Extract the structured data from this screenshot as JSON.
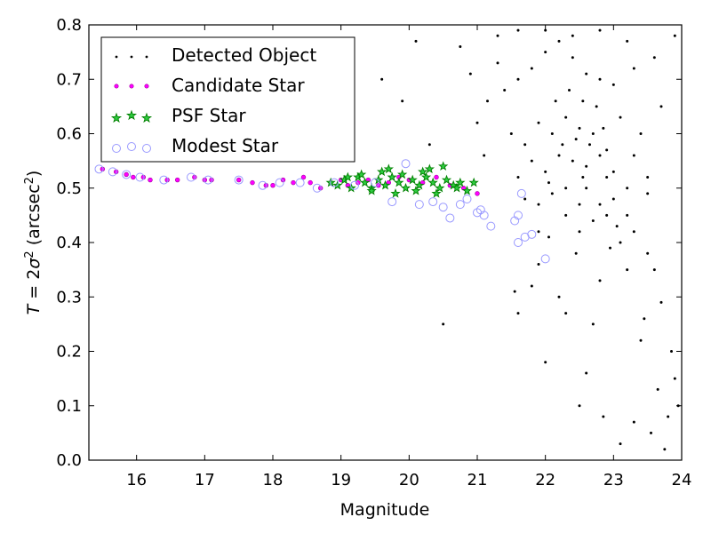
{
  "chart_data": {
    "type": "scatter",
    "title": "",
    "xlabel": "Magnitude",
    "ylabel": "T = 2σ² (arcsec²)",
    "ylabel_parts": {
      "T": "T",
      "eq": " = 2",
      "sigma": "σ",
      "sq": "2",
      "unit_open": " (arcsec",
      "unit_sq": "2",
      "unit_close": ")"
    },
    "xlim": [
      15.3,
      24
    ],
    "ylim": [
      0.0,
      0.8
    ],
    "xticks": [
      16,
      17,
      18,
      19,
      20,
      21,
      22,
      23,
      24
    ],
    "yticks": [
      0.0,
      0.1,
      0.2,
      0.3,
      0.4,
      0.5,
      0.6,
      0.7,
      0.8
    ],
    "ytick_labels": [
      "0.0",
      "0.1",
      "0.2",
      "0.3",
      "0.4",
      "0.5",
      "0.6",
      "0.7",
      "0.8"
    ],
    "grid": false,
    "legend_position": "top-left",
    "series": [
      {
        "name": "Detected Object",
        "marker": "dot",
        "color": "#000000",
        "points": [
          [
            20.5,
            0.25
          ],
          [
            21.6,
            0.27
          ],
          [
            21.55,
            0.31
          ],
          [
            22.0,
            0.18
          ],
          [
            22.3,
            0.27
          ],
          [
            21.8,
            0.32
          ],
          [
            22.6,
            0.16
          ],
          [
            22.85,
            0.08
          ],
          [
            23.1,
            0.03
          ],
          [
            23.3,
            0.07
          ],
          [
            23.55,
            0.05
          ],
          [
            23.75,
            0.02
          ],
          [
            23.95,
            0.1
          ],
          [
            23.85,
            0.2
          ],
          [
            23.65,
            0.13
          ],
          [
            23.45,
            0.26
          ],
          [
            23.2,
            0.35
          ],
          [
            22.95,
            0.39
          ],
          [
            23.6,
            0.35
          ],
          [
            23.9,
            0.15
          ],
          [
            22.5,
            0.1
          ],
          [
            22.45,
            0.38
          ],
          [
            22.7,
            0.25
          ],
          [
            21.9,
            0.36
          ],
          [
            23.4,
            0.22
          ],
          [
            23.7,
            0.29
          ],
          [
            23.8,
            0.08
          ],
          [
            23.05,
            0.43
          ],
          [
            22.8,
            0.33
          ],
          [
            22.2,
            0.3
          ],
          [
            21.1,
            0.56
          ],
          [
            21.0,
            0.62
          ],
          [
            21.15,
            0.66
          ],
          [
            20.9,
            0.71
          ],
          [
            21.3,
            0.73
          ],
          [
            20.75,
            0.76
          ],
          [
            20.1,
            0.77
          ],
          [
            19.9,
            0.66
          ],
          [
            20.3,
            0.58
          ],
          [
            19.6,
            0.7
          ],
          [
            21.9,
            0.42
          ],
          [
            22.05,
            0.41
          ],
          [
            22.5,
            0.42
          ],
          [
            22.8,
            0.47
          ],
          [
            23.0,
            0.53
          ],
          [
            23.3,
            0.56
          ],
          [
            22.3,
            0.45
          ],
          [
            22.6,
            0.5
          ],
          [
            22.9,
            0.52
          ],
          [
            23.2,
            0.45
          ],
          [
            21.4,
            0.68
          ],
          [
            21.6,
            0.7
          ],
          [
            21.8,
            0.72
          ],
          [
            22.0,
            0.75
          ],
          [
            22.2,
            0.77
          ],
          [
            22.4,
            0.74
          ],
          [
            22.6,
            0.71
          ],
          [
            22.8,
            0.7
          ],
          [
            23.0,
            0.69
          ],
          [
            23.3,
            0.72
          ],
          [
            21.5,
            0.6
          ],
          [
            21.7,
            0.58
          ],
          [
            21.9,
            0.62
          ],
          [
            22.1,
            0.6
          ],
          [
            22.3,
            0.63
          ],
          [
            22.5,
            0.61
          ],
          [
            22.7,
            0.6
          ],
          [
            22.9,
            0.57
          ],
          [
            23.1,
            0.63
          ],
          [
            23.4,
            0.6
          ],
          [
            21.6,
            0.52
          ],
          [
            21.8,
            0.55
          ],
          [
            22.0,
            0.53
          ],
          [
            22.2,
            0.56
          ],
          [
            22.4,
            0.55
          ],
          [
            22.6,
            0.54
          ],
          [
            22.8,
            0.56
          ],
          [
            23.0,
            0.48
          ],
          [
            23.2,
            0.5
          ],
          [
            23.5,
            0.49
          ],
          [
            21.7,
            0.48
          ],
          [
            21.9,
            0.47
          ],
          [
            22.1,
            0.49
          ],
          [
            22.3,
            0.5
          ],
          [
            22.5,
            0.47
          ],
          [
            22.7,
            0.44
          ],
          [
            22.9,
            0.45
          ],
          [
            23.1,
            0.4
          ],
          [
            23.3,
            0.42
          ],
          [
            23.5,
            0.38
          ],
          [
            21.3,
            0.78
          ],
          [
            21.6,
            0.79
          ],
          [
            22.0,
            0.79
          ],
          [
            22.4,
            0.78
          ],
          [
            22.8,
            0.79
          ],
          [
            23.2,
            0.77
          ],
          [
            23.6,
            0.74
          ],
          [
            23.9,
            0.78
          ],
          [
            23.7,
            0.65
          ],
          [
            23.5,
            0.52
          ],
          [
            22.15,
            0.66
          ],
          [
            22.35,
            0.68
          ],
          [
            22.55,
            0.66
          ],
          [
            22.75,
            0.65
          ],
          [
            22.25,
            0.58
          ],
          [
            22.45,
            0.59
          ],
          [
            22.65,
            0.58
          ],
          [
            22.85,
            0.61
          ],
          [
            22.05,
            0.51
          ],
          [
            22.55,
            0.52
          ]
        ]
      },
      {
        "name": "Candidate Star",
        "marker": "circle-small",
        "color": "#ff00ff",
        "points": [
          [
            15.5,
            0.535
          ],
          [
            15.7,
            0.53
          ],
          [
            15.85,
            0.525
          ],
          [
            15.95,
            0.52
          ],
          [
            16.1,
            0.52
          ],
          [
            16.2,
            0.515
          ],
          [
            16.45,
            0.515
          ],
          [
            16.6,
            0.515
          ],
          [
            16.85,
            0.52
          ],
          [
            17.0,
            0.515
          ],
          [
            17.1,
            0.515
          ],
          [
            17.5,
            0.515
          ],
          [
            17.7,
            0.51
          ],
          [
            17.9,
            0.505
          ],
          [
            18.0,
            0.505
          ],
          [
            18.15,
            0.515
          ],
          [
            18.3,
            0.51
          ],
          [
            18.45,
            0.52
          ],
          [
            18.55,
            0.51
          ],
          [
            18.7,
            0.5
          ],
          [
            18.85,
            0.51
          ],
          [
            19.0,
            0.515
          ],
          [
            19.1,
            0.505
          ],
          [
            19.25,
            0.51
          ],
          [
            19.4,
            0.515
          ],
          [
            19.55,
            0.505
          ],
          [
            19.7,
            0.51
          ],
          [
            19.85,
            0.52
          ],
          [
            20.0,
            0.515
          ],
          [
            20.2,
            0.51
          ],
          [
            20.4,
            0.52
          ],
          [
            20.6,
            0.505
          ],
          [
            20.8,
            0.5
          ],
          [
            21.0,
            0.49
          ]
        ]
      },
      {
        "name": "PSF Star",
        "marker": "star",
        "color": "#008000",
        "points": [
          [
            18.85,
            0.51
          ],
          [
            18.95,
            0.505
          ],
          [
            19.05,
            0.515
          ],
          [
            19.15,
            0.5
          ],
          [
            19.25,
            0.52
          ],
          [
            19.35,
            0.51
          ],
          [
            19.45,
            0.5
          ],
          [
            19.55,
            0.515
          ],
          [
            19.65,
            0.505
          ],
          [
            19.75,
            0.52
          ],
          [
            19.85,
            0.51
          ],
          [
            19.95,
            0.5
          ],
          [
            20.05,
            0.515
          ],
          [
            20.15,
            0.505
          ],
          [
            20.25,
            0.52
          ],
          [
            20.35,
            0.51
          ],
          [
            20.45,
            0.5
          ],
          [
            20.55,
            0.515
          ],
          [
            20.65,
            0.505
          ],
          [
            20.75,
            0.51
          ],
          [
            19.3,
            0.525
          ],
          [
            19.6,
            0.53
          ],
          [
            19.9,
            0.525
          ],
          [
            20.2,
            0.53
          ],
          [
            20.5,
            0.54
          ],
          [
            19.45,
            0.495
          ],
          [
            19.8,
            0.49
          ],
          [
            20.1,
            0.495
          ],
          [
            20.4,
            0.49
          ],
          [
            20.7,
            0.5
          ],
          [
            20.95,
            0.51
          ],
          [
            20.85,
            0.495
          ],
          [
            19.1,
            0.52
          ],
          [
            19.7,
            0.535
          ],
          [
            20.3,
            0.535
          ]
        ]
      },
      {
        "name": "Modest Star",
        "marker": "circle-open",
        "color": "#9999ff",
        "points": [
          [
            15.45,
            0.535
          ],
          [
            15.65,
            0.53
          ],
          [
            15.85,
            0.525
          ],
          [
            16.05,
            0.52
          ],
          [
            16.4,
            0.515
          ],
          [
            16.8,
            0.52
          ],
          [
            17.05,
            0.515
          ],
          [
            17.5,
            0.515
          ],
          [
            17.85,
            0.505
          ],
          [
            18.1,
            0.51
          ],
          [
            18.4,
            0.51
          ],
          [
            18.65,
            0.5
          ],
          [
            18.9,
            0.51
          ],
          [
            19.2,
            0.505
          ],
          [
            19.5,
            0.51
          ],
          [
            19.75,
            0.475
          ],
          [
            19.95,
            0.545
          ],
          [
            20.15,
            0.47
          ],
          [
            20.35,
            0.475
          ],
          [
            20.5,
            0.465
          ],
          [
            20.6,
            0.445
          ],
          [
            20.75,
            0.47
          ],
          [
            20.85,
            0.48
          ],
          [
            21.0,
            0.455
          ],
          [
            21.05,
            0.46
          ],
          [
            21.1,
            0.45
          ],
          [
            21.2,
            0.43
          ],
          [
            21.6,
            0.45
          ],
          [
            21.65,
            0.49
          ],
          [
            21.6,
            0.4
          ],
          [
            21.7,
            0.41
          ],
          [
            21.8,
            0.415
          ],
          [
            22.0,
            0.37
          ],
          [
            21.55,
            0.44
          ]
        ]
      }
    ]
  }
}
